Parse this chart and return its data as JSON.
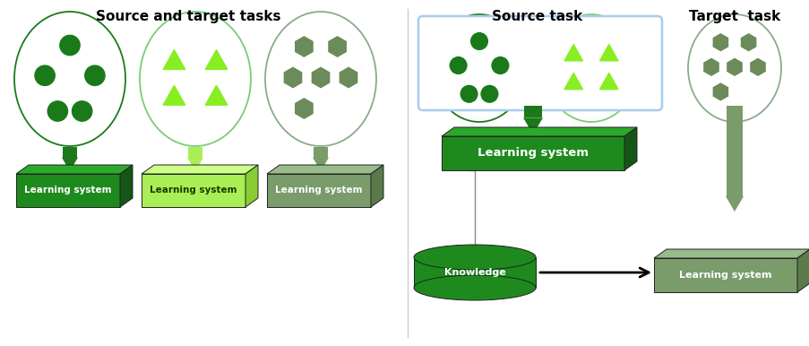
{
  "title_left": "Source and target tasks",
  "title_right_source": "Source task",
  "title_right_target": "Target  task",
  "colors": {
    "dark_green": "#1a7a1a",
    "light_green_border": "#7acc7a",
    "muted_green_border": "#8aab8a",
    "bright_tri": "#7fff00",
    "hex_fill": "#6b8b5a",
    "box_dark_face": "#1e8a1e",
    "box_dark_top": "#2aaa2a",
    "box_dark_side": "#155515",
    "box_light_face": "#aaee55",
    "box_light_top": "#ccff88",
    "box_light_side": "#88cc33",
    "box_muted_face": "#7a9b6a",
    "box_muted_top": "#9abb8a",
    "box_muted_side": "#5a7a4a",
    "box_right_target_face": "#7a9b6a",
    "box_right_target_top": "#9abb8a",
    "box_right_target_side": "#5a7a4a",
    "knowledge_color": "#1e8a1e",
    "source_rect_border": "#aaccee",
    "arrow_dark": "#1a7a1a",
    "arrow_light": "#aaee55",
    "arrow_muted": "#7a9b6a",
    "black": "#000000",
    "white": "#ffffff",
    "gray_connector": "#888888"
  }
}
